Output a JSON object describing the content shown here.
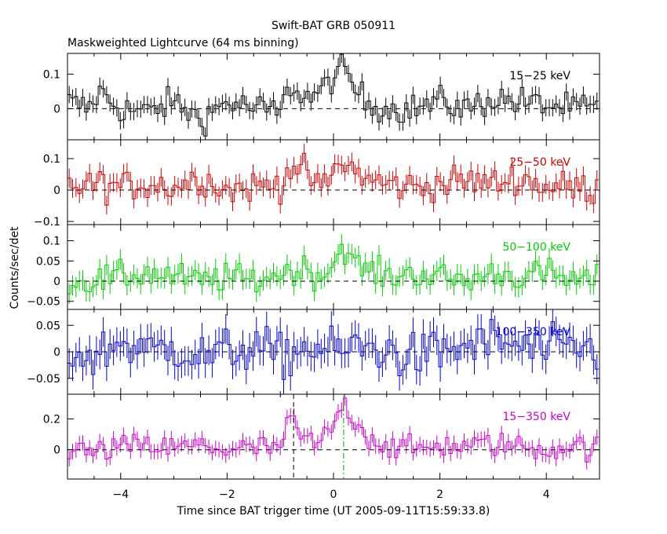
{
  "chart_data": {
    "type": "line",
    "title": "Swift-BAT GRB 050911",
    "subtitle": "Maskweighted Lightcurve (64 ms binning)",
    "xlabel": "Time since BAT trigger time (UT 2005-09-11T15:59:33.8)",
    "ylabel": "Counts/sec/det",
    "xlim": [
      -5,
      5
    ],
    "x_ticks": [
      -4,
      -2,
      0,
      2,
      4
    ],
    "x_tick_labels": [
      "−4",
      "−2",
      "0",
      "2",
      "4"
    ],
    "markers": [
      {
        "x": -0.75,
        "color": "#000000",
        "style": "dashed",
        "panel": 4
      },
      {
        "x": 0.19,
        "color": "#00aa00",
        "style": "dashdot",
        "panel": 4
      }
    ],
    "panels": [
      {
        "name": "15−25 keV",
        "color": "#000000",
        "ylim": [
          -0.09,
          0.16
        ],
        "y_ticks": [
          0,
          0.1
        ],
        "y_tick_labels": [
          "0",
          "0.1"
        ],
        "keyframes": [
          [
            -5,
            0.02
          ],
          [
            -4.6,
            0.0
          ],
          [
            -4.4,
            0.05
          ],
          [
            -4.0,
            0.0
          ],
          [
            -3.5,
            -0.01
          ],
          [
            -3.0,
            0.02
          ],
          [
            -2.5,
            -0.03
          ],
          [
            -2.0,
            0.02
          ],
          [
            -1.5,
            0.0
          ],
          [
            -1.0,
            -0.01
          ],
          [
            -0.8,
            0.07
          ],
          [
            -0.5,
            0.03
          ],
          [
            -0.2,
            0.05
          ],
          [
            0.0,
            0.1
          ],
          [
            0.2,
            0.11
          ],
          [
            0.4,
            0.06
          ],
          [
            0.6,
            0.02
          ],
          [
            1.0,
            0.0
          ],
          [
            1.5,
            0.0
          ],
          [
            2.0,
            0.02
          ],
          [
            2.5,
            0.0
          ],
          [
            3.0,
            0.03
          ],
          [
            3.5,
            0.02
          ],
          [
            4.0,
            0.01
          ],
          [
            4.5,
            0.0
          ],
          [
            5.0,
            0.0
          ]
        ],
        "amp": 0.022,
        "err": 0.025
      },
      {
        "name": "25−50 keV",
        "color": "#cc0000",
        "ylim": [
          -0.11,
          0.16
        ],
        "y_ticks": [
          -0.1,
          0,
          0.1
        ],
        "y_tick_labels": [
          "−0.1",
          "0",
          "0.1"
        ],
        "keyframes": [
          [
            -5,
            0.01
          ],
          [
            -4.5,
            0.02
          ],
          [
            -4.0,
            0.01
          ],
          [
            -3.5,
            0.02
          ],
          [
            -3.0,
            0.01
          ],
          [
            -2.5,
            0.04
          ],
          [
            -2.0,
            0.0
          ],
          [
            -1.5,
            0.01
          ],
          [
            -1.0,
            0.02
          ],
          [
            -0.8,
            0.08
          ],
          [
            -0.5,
            0.05
          ],
          [
            -0.2,
            0.0
          ],
          [
            0.0,
            0.06
          ],
          [
            0.2,
            0.09
          ],
          [
            0.4,
            0.06
          ],
          [
            0.7,
            0.03
          ],
          [
            1.0,
            0.02
          ],
          [
            1.5,
            0.01
          ],
          [
            2.0,
            0.02
          ],
          [
            2.5,
            0.03
          ],
          [
            3.0,
            0.02
          ],
          [
            3.5,
            0.04
          ],
          [
            4.0,
            0.01
          ],
          [
            4.5,
            0.01
          ],
          [
            5.0,
            0.0
          ]
        ],
        "amp": 0.025,
        "err": 0.03
      },
      {
        "name": "50−100 keV",
        "color": "#00cc00",
        "ylim": [
          -0.07,
          0.14
        ],
        "y_ticks": [
          -0.05,
          0,
          0.05,
          0.1
        ],
        "y_tick_labels": [
          "−0.05",
          "0",
          "0.05",
          "0.1"
        ],
        "keyframes": [
          [
            -5,
            0.0
          ],
          [
            -4.5,
            0.0
          ],
          [
            -4.0,
            0.01
          ],
          [
            -3.5,
            0.02
          ],
          [
            -3.0,
            0.01
          ],
          [
            -2.5,
            0.0
          ],
          [
            -2.0,
            0.01
          ],
          [
            -1.5,
            0.0
          ],
          [
            -1.0,
            0.02
          ],
          [
            -0.5,
            0.03
          ],
          [
            -0.2,
            0.01
          ],
          [
            0.0,
            0.05
          ],
          [
            0.2,
            0.09
          ],
          [
            0.4,
            0.04
          ],
          [
            0.6,
            0.03
          ],
          [
            1.0,
            0.01
          ],
          [
            1.5,
            0.02
          ],
          [
            2.0,
            0.01
          ],
          [
            2.5,
            0.0
          ],
          [
            3.0,
            0.02
          ],
          [
            3.5,
            0.01
          ],
          [
            4.0,
            0.02
          ],
          [
            4.5,
            0.0
          ],
          [
            5.0,
            0.0
          ]
        ],
        "amp": 0.018,
        "err": 0.025
      },
      {
        "name": "100−350 keV",
        "color": "#0000cc",
        "ylim": [
          -0.08,
          0.08
        ],
        "y_ticks": [
          -0.05,
          0,
          0.05
        ],
        "y_tick_labels": [
          "−0.05",
          "0",
          "0.05"
        ],
        "keyframes": [
          [
            -5,
            0.0
          ],
          [
            -4.5,
            -0.01
          ],
          [
            -4.0,
            0.02
          ],
          [
            -3.5,
            0.0
          ],
          [
            -3.0,
            0.01
          ],
          [
            -2.5,
            -0.01
          ],
          [
            -2.0,
            0.0
          ],
          [
            -1.5,
            0.01
          ],
          [
            -1.0,
            -0.01
          ],
          [
            -0.5,
            0.01
          ],
          [
            0.0,
            0.0
          ],
          [
            0.5,
            0.01
          ],
          [
            1.0,
            0.0
          ],
          [
            1.5,
            -0.01
          ],
          [
            2.0,
            0.0
          ],
          [
            2.5,
            0.01
          ],
          [
            3.0,
            0.02
          ],
          [
            3.5,
            0.01
          ],
          [
            4.0,
            0.0
          ],
          [
            4.5,
            0.01
          ],
          [
            5.0,
            0.0
          ]
        ],
        "amp": 0.022,
        "err": 0.028
      },
      {
        "name": "15−350 keV",
        "color": "#cc00cc",
        "ylim": [
          -0.19,
          0.36
        ],
        "y_ticks": [
          0,
          0.2
        ],
        "y_tick_labels": [
          "0",
          "0.2"
        ],
        "keyframes": [
          [
            -5,
            0.0
          ],
          [
            -4.5,
            -0.02
          ],
          [
            -4.0,
            0.02
          ],
          [
            -3.5,
            0.02
          ],
          [
            -3.0,
            0.01
          ],
          [
            -2.5,
            0.03
          ],
          [
            -2.0,
            0.0
          ],
          [
            -1.5,
            0.01
          ],
          [
            -1.0,
            0.02
          ],
          [
            -0.8,
            0.2
          ],
          [
            -0.6,
            0.08
          ],
          [
            -0.3,
            0.03
          ],
          [
            0.0,
            0.15
          ],
          [
            0.15,
            0.3
          ],
          [
            0.3,
            0.25
          ],
          [
            0.6,
            0.1
          ],
          [
            1.0,
            0.02
          ],
          [
            1.5,
            0.0
          ],
          [
            2.0,
            0.03
          ],
          [
            2.5,
            0.02
          ],
          [
            3.0,
            0.04
          ],
          [
            3.5,
            0.02
          ],
          [
            4.0,
            0.0
          ],
          [
            4.5,
            0.03
          ],
          [
            5.0,
            0.0
          ]
        ],
        "amp": 0.04,
        "err": 0.05
      }
    ]
  }
}
